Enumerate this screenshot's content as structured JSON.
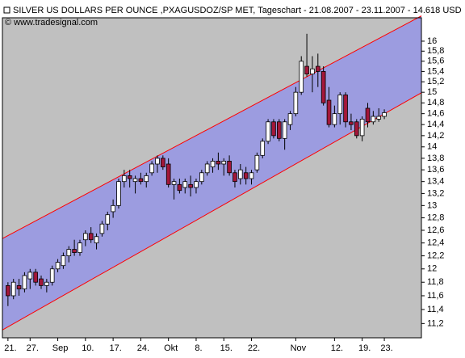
{
  "chart_data": {
    "type": "candlestick",
    "title": "SILVER US DOLLARS PER OUNCE ,PXAGUSDOZ/SP MET, Tageschart - 21.08.2007 - 23.11.2007 - 14.618 USD",
    "subtitle": "© www.tradesignal.com",
    "categories": [
      "21.",
      null,
      null,
      null,
      "27.",
      null,
      null,
      null,
      null,
      "Sep",
      null,
      null,
      null,
      null,
      "10.",
      null,
      null,
      null,
      null,
      "17.",
      null,
      null,
      null,
      null,
      "24.",
      null,
      null,
      null,
      null,
      "Okt",
      null,
      null,
      null,
      null,
      "8.",
      null,
      null,
      null,
      null,
      "15.",
      null,
      null,
      null,
      null,
      "22.",
      null,
      null,
      null,
      null,
      null,
      null,
      null,
      "Nov",
      null,
      null,
      null,
      null,
      null,
      null,
      "12.",
      null,
      null,
      null,
      null,
      "19.",
      null,
      null,
      null,
      "23."
    ],
    "open": [
      11.75,
      11.6,
      11.75,
      11.7,
      11.85,
      11.95,
      11.85,
      11.75,
      11.8,
      12.0,
      12.05,
      12.2,
      12.3,
      12.25,
      12.45,
      12.55,
      12.4,
      12.55,
      12.7,
      12.9,
      13.0,
      13.4,
      13.5,
      13.4,
      13.45,
      13.4,
      13.55,
      13.7,
      13.8,
      13.7,
      13.35,
      13.35,
      13.3,
      13.35,
      13.3,
      13.4,
      13.55,
      13.65,
      13.75,
      13.7,
      13.75,
      13.55,
      13.45,
      13.55,
      13.45,
      13.6,
      13.85,
      14.1,
      14.45,
      14.45,
      14.15,
      14.4,
      14.6,
      15.0,
      15.5,
      15.35,
      15.5,
      15.4,
      14.85,
      14.4,
      14.6,
      14.95,
      14.45,
      14.45,
      14.2,
      14.7,
      14.45,
      14.5,
      14.55
    ],
    "high": [
      11.8,
      11.85,
      11.85,
      11.95,
      12.0,
      12.0,
      11.9,
      11.85,
      12.05,
      12.15,
      12.25,
      12.35,
      12.45,
      12.45,
      12.6,
      12.65,
      12.55,
      12.75,
      12.9,
      13.1,
      13.45,
      13.6,
      13.6,
      13.5,
      13.55,
      13.55,
      13.75,
      13.85,
      13.85,
      13.8,
      13.45,
      13.45,
      13.45,
      13.5,
      13.45,
      13.6,
      13.75,
      13.8,
      13.9,
      13.8,
      13.85,
      13.6,
      13.7,
      13.65,
      13.6,
      13.9,
      14.15,
      14.5,
      14.5,
      14.5,
      14.5,
      14.65,
      15.1,
      15.7,
      16.15,
      15.7,
      15.75,
      15.5,
      15.1,
      14.75,
      15.0,
      15.0,
      14.6,
      14.5,
      14.55,
      14.8,
      14.65,
      14.7,
      14.68
    ],
    "low": [
      11.45,
      11.55,
      11.6,
      11.65,
      11.7,
      11.75,
      11.7,
      11.65,
      11.75,
      11.95,
      12.0,
      12.1,
      12.2,
      12.2,
      12.35,
      12.4,
      12.3,
      12.5,
      12.6,
      12.8,
      12.95,
      13.3,
      13.3,
      13.2,
      13.35,
      13.3,
      13.5,
      13.55,
      13.6,
      13.3,
      13.1,
      13.2,
      13.2,
      13.15,
      13.2,
      13.35,
      13.5,
      13.55,
      13.6,
      13.5,
      13.5,
      13.3,
      13.35,
      13.35,
      13.35,
      13.55,
      13.8,
      14.05,
      14.15,
      14.1,
      13.95,
      14.3,
      14.55,
      14.95,
      15.3,
      15.0,
      15.1,
      14.75,
      14.35,
      14.35,
      14.4,
      14.35,
      14.3,
      14.15,
      14.1,
      14.35,
      14.4,
      14.45,
      14.5
    ],
    "close": [
      11.6,
      11.8,
      11.7,
      11.9,
      11.95,
      11.8,
      11.75,
      11.8,
      12.0,
      12.1,
      12.2,
      12.3,
      12.25,
      12.4,
      12.55,
      12.45,
      12.5,
      12.7,
      12.85,
      13.0,
      13.4,
      13.5,
      13.45,
      13.45,
      13.4,
      13.5,
      13.7,
      13.8,
      13.65,
      13.35,
      13.4,
      13.25,
      13.4,
      13.3,
      13.4,
      13.55,
      13.7,
      13.75,
      13.7,
      13.75,
      13.55,
      13.4,
      13.6,
      13.45,
      13.55,
      13.85,
      14.1,
      14.45,
      14.2,
      14.15,
      14.45,
      14.6,
      15.0,
      15.6,
      15.35,
      15.45,
      15.4,
      14.8,
      14.4,
      14.6,
      14.95,
      14.45,
      14.4,
      14.2,
      14.5,
      14.45,
      14.55,
      14.55,
      14.618
    ],
    "up_color": "#ffffff",
    "down_color": "#a3173a",
    "channel": {
      "upper": [
        12.47,
        16.52
      ],
      "lower": [
        11.11,
        14.99
      ],
      "line_color": "#ff0000",
      "fill": "#9c9ce0"
    },
    "xlim": [
      -1,
      74.7
    ],
    "ylim": [
      11.0,
      16.48
    ],
    "log_scale": true,
    "yticks": [
      16,
      {
        "value": 15.8,
        "label": "15,8"
      },
      {
        "value": 15.6,
        "label": "15,6"
      },
      {
        "value": 15.4,
        "label": "15,4"
      },
      {
        "value": 15.2,
        "label": "15,2"
      },
      15,
      {
        "value": 14.8,
        "label": "14,8"
      },
      {
        "value": 14.6,
        "label": "14,6"
      },
      {
        "value": 14.4,
        "label": "14,4"
      },
      {
        "value": 14.2,
        "label": "14,2"
      },
      14,
      {
        "value": 13.8,
        "label": "13,8"
      },
      {
        "value": 13.6,
        "label": "13,6"
      },
      {
        "value": 13.4,
        "label": "13,4"
      },
      {
        "value": 13.2,
        "label": "13,2"
      },
      13,
      {
        "value": 12.8,
        "label": "12,8"
      },
      {
        "value": 12.6,
        "label": "12,6"
      },
      {
        "value": 12.4,
        "label": "12,4"
      },
      {
        "value": 12.2,
        "label": "12,2"
      },
      12,
      {
        "value": 11.8,
        "label": "11,8"
      },
      {
        "value": 11.6,
        "label": "11,6"
      },
      {
        "value": 11.4,
        "label": "11,4"
      },
      {
        "value": 11.2,
        "label": "11,2"
      }
    ],
    "grid": false
  }
}
